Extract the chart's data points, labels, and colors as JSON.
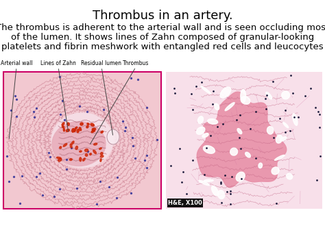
{
  "title": "Thrombus in an artery.",
  "description_line1": "The thrombus is adherent to the arterial wall and is seen occluding most",
  "description_line2": "of the lumen. It shows lines of Zahn composed of granular-looking",
  "description_line3": "platelets and fibrin meshwork with entangled red cells and leucocytes",
  "title_fontsize": 13,
  "desc_fontsize": 9.5,
  "background_color": "#ffffff",
  "text_color": "#000000",
  "annotations": [
    "Arterial wall",
    "Lines of Zahn",
    "Residual lumen",
    "Thrombus"
  ],
  "annot_fontsize": 5.5,
  "left_image_border_color": "#cc0066",
  "he_label": "H&E, X100",
  "he_label_bg": "#111111",
  "he_label_color": "#ffffff",
  "he_label_fontsize": 6
}
